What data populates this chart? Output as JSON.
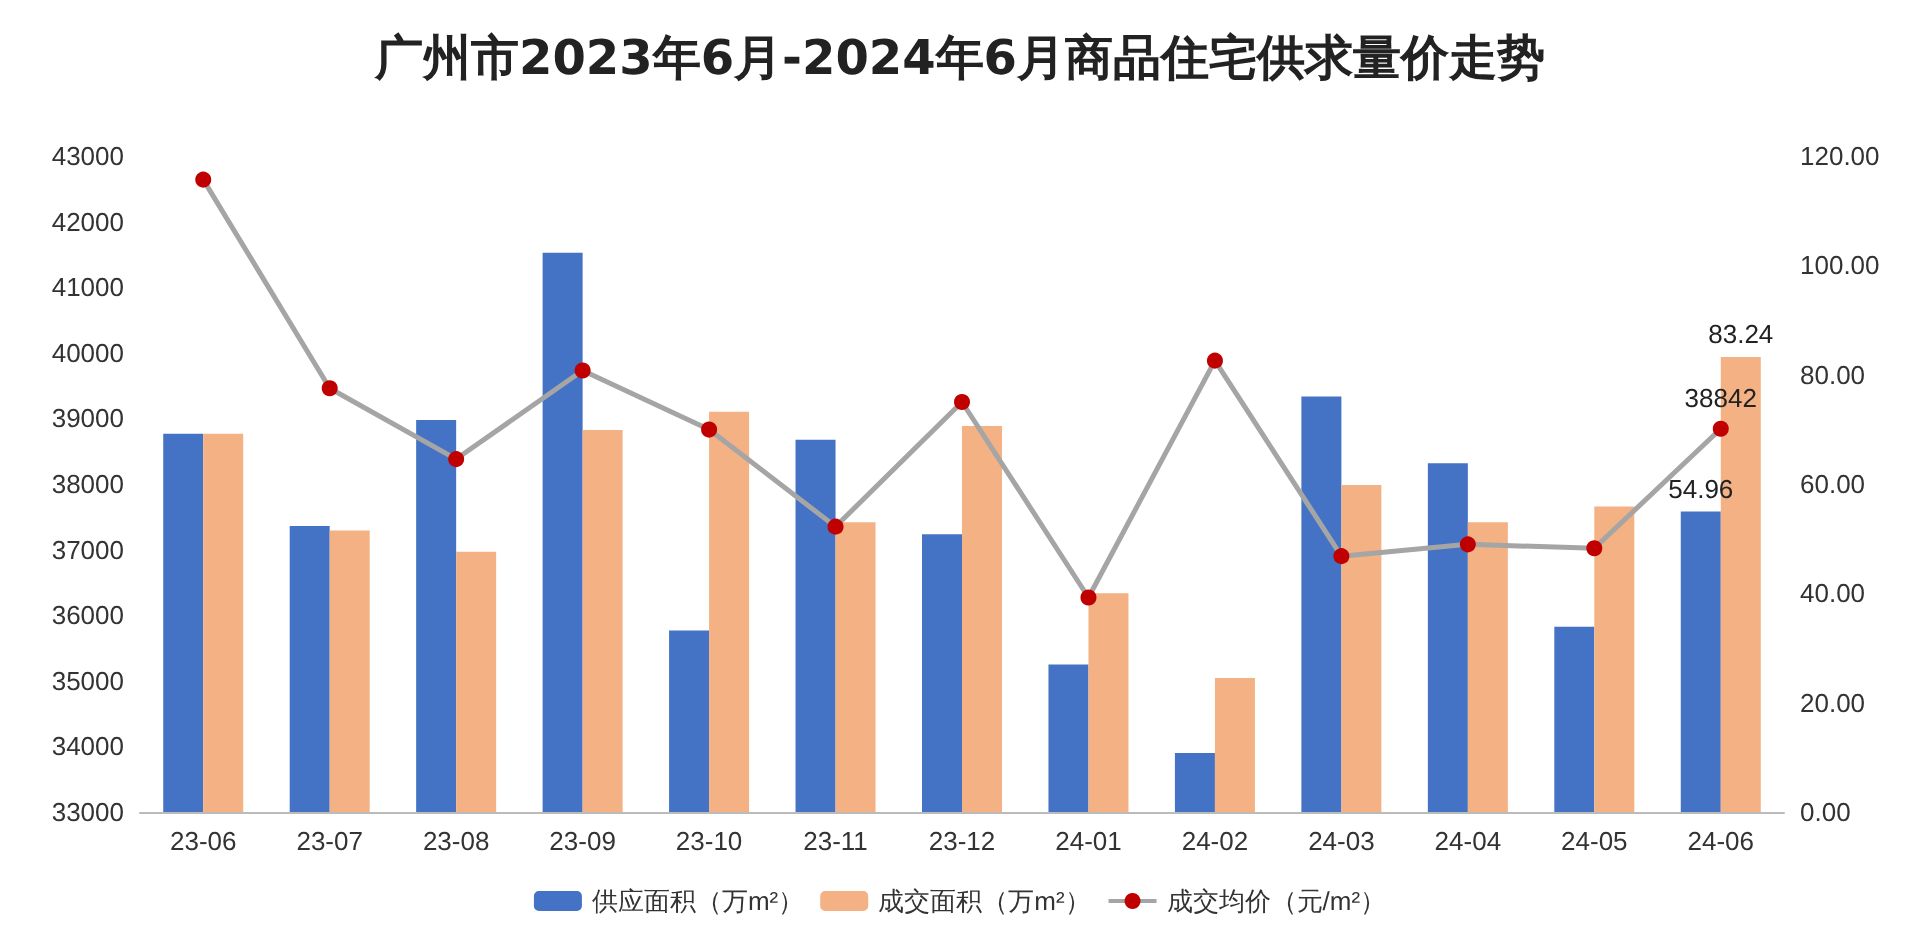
{
  "chart_data": {
    "type": "bar",
    "title": "广州市2023年6月-2024年6月商品住宅供求量价走势",
    "categories": [
      "23-06",
      "23-07",
      "23-08",
      "23-09",
      "23-10",
      "23-11",
      "23-12",
      "24-01",
      "24-02",
      "24-03",
      "24-04",
      "24-05",
      "24-06"
    ],
    "series": [
      {
        "name": "供应面积（万m²）",
        "axis": "y2",
        "color": "#4472c4",
        "values": [
          69.2,
          52.3,
          71.7,
          102.3,
          33.2,
          68.1,
          50.8,
          27.0,
          10.8,
          76.0,
          63.8,
          33.9,
          54.96
        ],
        "value_labels": [
          null,
          null,
          null,
          null,
          null,
          null,
          null,
          null,
          null,
          null,
          null,
          null,
          "54.96"
        ]
      },
      {
        "name": "成交面积（万m²）",
        "axis": "y2",
        "color": "#f4b183",
        "values": [
          69.2,
          51.5,
          47.6,
          69.9,
          73.2,
          53.0,
          70.6,
          40.0,
          24.5,
          59.8,
          53.0,
          55.9,
          83.24
        ],
        "value_labels": [
          null,
          null,
          null,
          null,
          null,
          null,
          null,
          null,
          null,
          null,
          null,
          null,
          "83.24"
        ]
      },
      {
        "name": "成交均价（元/m²）",
        "type": "line",
        "axis": "y",
        "color": "#a5a5a5",
        "marker": "circle",
        "values": [
          42640,
          39460,
          38380,
          39730,
          38830,
          37350,
          39250,
          36270,
          39880,
          36900,
          37080,
          37020,
          38842
        ],
        "value_labels": [
          null,
          null,
          null,
          null,
          null,
          null,
          null,
          null,
          null,
          null,
          null,
          null,
          "38842"
        ]
      }
    ],
    "ylim": [
      33000,
      43000
    ],
    "yticks": [
      33000,
      34000,
      35000,
      36000,
      37000,
      38000,
      39000,
      40000,
      41000,
      42000,
      43000
    ],
    "y2lim": [
      0,
      120
    ],
    "y2ticks": [
      {
        "value": 0,
        "label": "0.00"
      },
      {
        "value": 20,
        "label": "20.00"
      },
      {
        "value": 40,
        "label": "40.00"
      },
      {
        "value": 60,
        "label": "60.00"
      },
      {
        "value": 80,
        "label": "80.00"
      },
      {
        "value": 100,
        "label": "100.00"
      },
      {
        "value": 120,
        "label": "120.00"
      }
    ],
    "grid": false,
    "legend": "bottom"
  }
}
